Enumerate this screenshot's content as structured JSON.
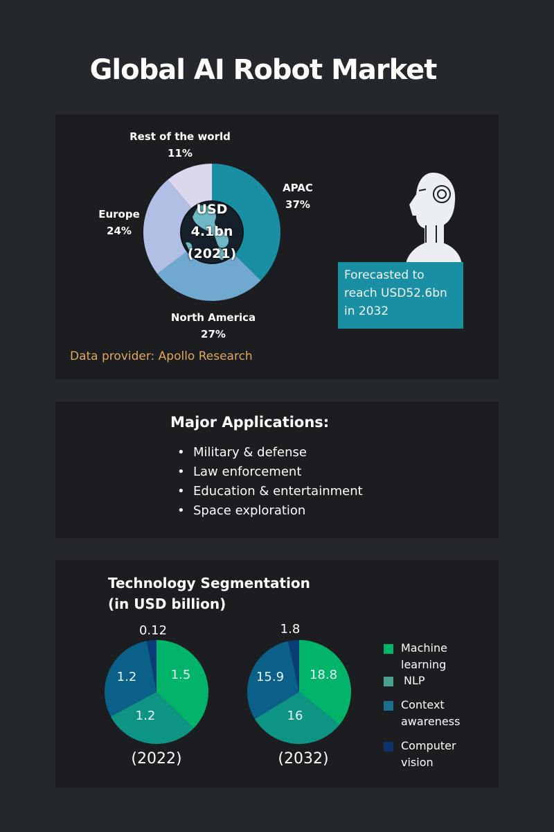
{
  "title": "Global AI Robot Market",
  "market_panel": {
    "center": {
      "line1": "USD",
      "line2": "4.1bn",
      "line3": "(2021)"
    },
    "provider": "Data provider: Apollo Research",
    "forecast": "Forecasted to reach USD52.6bn in 2032",
    "labels": {
      "rest": {
        "name": "Rest of the world",
        "pct": "11%"
      },
      "apac": {
        "name": "APAC",
        "pct": "37%"
      },
      "europe": {
        "name": "Europe",
        "pct": "24%"
      },
      "na": {
        "name": "North America",
        "pct": "27%"
      }
    }
  },
  "applications": {
    "title": "Major Applications:",
    "items": [
      "Military & defense",
      "Law enforcement",
      "Education & entertainment",
      "Space exploration"
    ]
  },
  "segmentation": {
    "title_line1": "Technology Segmentation",
    "title_line2": "(in USD billion)",
    "pie2022": {
      "year": "(2022)",
      "ml": "1.5",
      "nlp": "1.2",
      "ctx": "1.2",
      "cv": "0.12"
    },
    "pie2032": {
      "year": "(2032)",
      "ml": "18.8",
      "nlp": "16",
      "ctx": "15.9",
      "cv": "1.8"
    },
    "legend": [
      "Machine learning",
      "NLP",
      "Context awareness",
      "Computer vision"
    ]
  },
  "colors": {
    "apac": "#1a8fa3",
    "na": "#70a9d0",
    "europe": "#b0bfe3",
    "rest": "#dcd7ee",
    "ml": "#02b36a",
    "nlp": "#0e9484",
    "ctx": "#0b6089",
    "cv": "#0a3d78",
    "provider": "#e2a85a",
    "forecast_bg": "#1a8fa3"
  },
  "chart_data": [
    {
      "type": "pie",
      "title": "Global AI Robot Market USD 4.1bn (2021)",
      "categories": [
        "APAC",
        "North America",
        "Europe",
        "Rest of the world"
      ],
      "values": [
        37,
        27,
        24,
        11
      ],
      "unit": "%",
      "donut": true
    },
    {
      "type": "pie",
      "title": "Technology Segmentation (in USD billion) (2022)",
      "categories": [
        "Machine learning",
        "NLP",
        "Context awareness",
        "Computer vision"
      ],
      "values": [
        1.5,
        1.2,
        1.2,
        0.12
      ]
    },
    {
      "type": "pie",
      "title": "Technology Segmentation (in USD billion) (2032)",
      "categories": [
        "Machine learning",
        "NLP",
        "Context awareness",
        "Computer vision"
      ],
      "values": [
        18.8,
        16,
        15.9,
        1.8
      ]
    }
  ]
}
